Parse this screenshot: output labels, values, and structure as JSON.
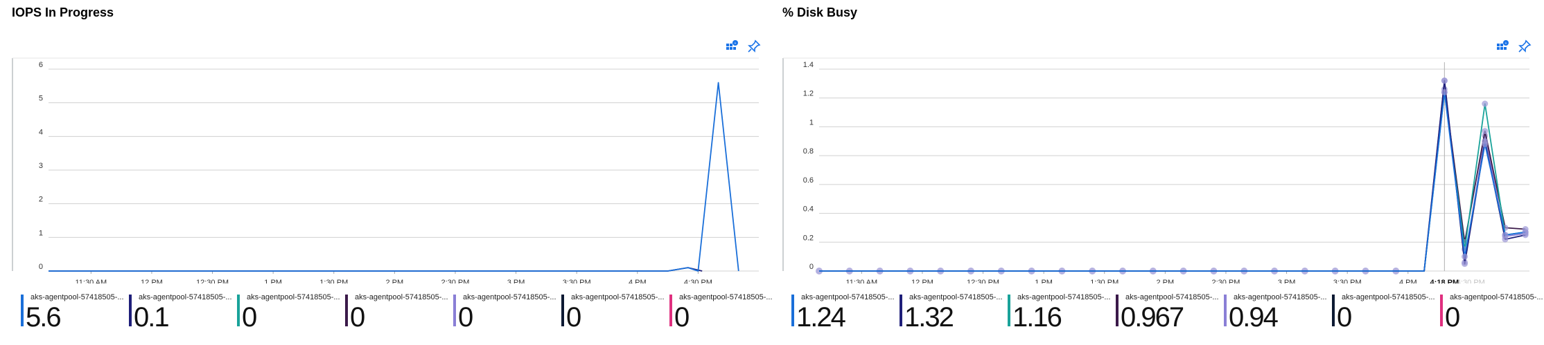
{
  "colors": {
    "axis": "#9aa0a6",
    "grid": "#d0d0d0",
    "icon": "#1a73e8"
  },
  "panels": [
    {
      "title": "IOPS In Progress",
      "icons": [
        "metrics-grid-icon",
        "pin-icon"
      ],
      "chart_data": {
        "type": "line",
        "title": "IOPS In Progress",
        "xlim": [
          "11:09",
          "17:00"
        ],
        "ylim": [
          0,
          6
        ],
        "yticks": [
          0,
          1,
          2,
          3,
          4,
          5,
          6
        ],
        "xticks": [
          "11:30 AM",
          "12 PM",
          "12:30 PM",
          "1 PM",
          "1:30 PM",
          "2 PM",
          "2:30 PM",
          "3 PM",
          "3:30 PM",
          "4 PM",
          "4:30 PM"
        ],
        "xtick_times": [
          "11:30",
          "12:00",
          "12:30",
          "13:00",
          "13:30",
          "14:00",
          "14:30",
          "15:00",
          "15:30",
          "16:00",
          "16:30"
        ],
        "grid": true,
        "markers": false,
        "series": [
          {
            "name": "aks-agentpool-57418505-...",
            "color": "#1a6fd9",
            "value": "5.6",
            "points": [
              [
                "11:09",
                0
              ],
              [
                "16:15",
                0
              ],
              [
                "16:25",
                0.1
              ],
              [
                "16:30",
                0
              ],
              [
                "16:40",
                5.6
              ],
              [
                "16:50",
                0
              ]
            ]
          },
          {
            "name": "aks-agentpool-57418505-...",
            "color": "#1f1f7a",
            "value": "0.1",
            "points": [
              [
                "11:09",
                0
              ],
              [
                "16:15",
                0
              ],
              [
                "16:25",
                0.1
              ],
              [
                "16:32",
                0
              ]
            ]
          },
          {
            "name": "aks-agentpool-57418505-...",
            "color": "#1aa39a",
            "value": "0",
            "points": []
          },
          {
            "name": "aks-agentpool-57418505-...",
            "color": "#3b1a4a",
            "value": "0",
            "points": []
          },
          {
            "name": "aks-agentpool-57418505-...",
            "color": "#8a7fd6",
            "value": "0",
            "points": []
          },
          {
            "name": "aks-agentpool-57418505-...",
            "color": "#0d1a33",
            "value": "0",
            "points": []
          },
          {
            "name": "aks-agentpool-57418505-...",
            "color": "#e0307f",
            "value": "0",
            "points": []
          }
        ]
      }
    },
    {
      "title": "% Disk Busy",
      "icons": [
        "metrics-grid-icon",
        "pin-icon"
      ],
      "chart_data": {
        "type": "line",
        "title": "% Disk Busy",
        "xlim": [
          "11:09",
          "17:00"
        ],
        "ylim": [
          0,
          1.4
        ],
        "yticks": [
          0,
          0.2,
          0.4,
          0.6,
          0.8,
          1,
          1.2,
          1.4
        ],
        "xticks": [
          "11:30 AM",
          "12 PM",
          "12:30 PM",
          "1 PM",
          "1:30 PM",
          "2 PM",
          "2:30 PM",
          "3 PM",
          "3:30 PM",
          "4 PM"
        ],
        "xtick_times": [
          "11:30",
          "12:00",
          "12:30",
          "13:00",
          "13:30",
          "14:00",
          "14:30",
          "15:00",
          "15:30",
          "16:00"
        ],
        "cursor": {
          "label": "4:18 PM",
          "ghost_label": "4:30 PM",
          "time": "16:18"
        },
        "grid": true,
        "markers": true,
        "series": [
          {
            "name": "aks-agentpool-57418505-...",
            "color": "#1a6fd9",
            "value": "1.24",
            "points": [
              [
                "11:09",
                0
              ],
              [
                "16:08",
                0
              ],
              [
                "16:18",
                1.24
              ],
              [
                "16:28",
                0.1
              ],
              [
                "16:38",
                0.88
              ],
              [
                "16:48",
                0.25
              ],
              [
                "16:58",
                0.27
              ]
            ]
          },
          {
            "name": "aks-agentpool-57418505-...",
            "color": "#1f1f7a",
            "value": "1.32",
            "points": [
              [
                "11:09",
                0
              ],
              [
                "16:08",
                0
              ],
              [
                "16:18",
                1.32
              ],
              [
                "16:28",
                0.05
              ],
              [
                "16:38",
                0.9
              ],
              [
                "16:48",
                0.22
              ],
              [
                "16:58",
                0.25
              ]
            ]
          },
          {
            "name": "aks-agentpool-57418505-...",
            "color": "#1aa39a",
            "value": "1.16",
            "points": [
              [
                "11:09",
                0
              ],
              [
                "16:08",
                0
              ],
              [
                "16:18",
                1.24
              ],
              [
                "16:28",
                0.15
              ],
              [
                "16:38",
                1.16
              ],
              [
                "16:48",
                0.25
              ],
              [
                "16:58",
                0.27
              ]
            ]
          },
          {
            "name": "aks-agentpool-57418505-...",
            "color": "#3b1a4a",
            "value": "0.967",
            "points": [
              [
                "11:09",
                0
              ],
              [
                "16:08",
                0
              ],
              [
                "16:18",
                1.26
              ],
              [
                "16:28",
                0.2
              ],
              [
                "16:38",
                0.97
              ],
              [
                "16:48",
                0.3
              ],
              [
                "16:58",
                0.29
              ]
            ]
          },
          {
            "name": "aks-agentpool-57418505-...",
            "color": "#8a7fd6",
            "value": "0.94",
            "points": [
              [
                "11:09",
                0
              ],
              [
                "16:08",
                0
              ],
              [
                "16:18",
                1.32
              ],
              [
                "16:28",
                0.06
              ],
              [
                "16:38",
                0.94
              ],
              [
                "16:48",
                0.24
              ],
              [
                "16:58",
                0.26
              ]
            ]
          },
          {
            "name": "aks-agentpool-57418505-...",
            "color": "#0d1a33",
            "value": "0",
            "points": []
          },
          {
            "name": "aks-agentpool-57418505-...",
            "color": "#e0307f",
            "value": "0",
            "points": []
          }
        ]
      }
    }
  ]
}
